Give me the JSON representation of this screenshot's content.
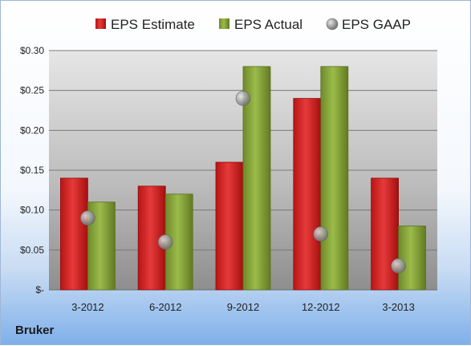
{
  "chart_data": {
    "type": "bar",
    "title": "",
    "xlabel": "",
    "ylabel": "",
    "categories": [
      "3-2012",
      "6-2012",
      "9-2012",
      "12-2012",
      "3-2013"
    ],
    "series": [
      {
        "name": "EPS Estimate",
        "kind": "bar",
        "color": "#cc2222",
        "values": [
          0.14,
          0.13,
          0.16,
          0.24,
          0.14
        ]
      },
      {
        "name": "EPS Actual",
        "kind": "bar",
        "color": "#8aa83a",
        "values": [
          0.11,
          0.12,
          0.28,
          0.28,
          0.08
        ]
      },
      {
        "name": "EPS GAAP",
        "kind": "scatter",
        "color": "#9a9a9a",
        "values": [
          0.09,
          0.06,
          0.24,
          0.07,
          0.03
        ]
      }
    ],
    "ylim": [
      0,
      0.3
    ],
    "yticks": [
      0,
      0.05,
      0.1,
      0.15,
      0.2,
      0.25,
      0.3
    ],
    "ytick_labels": [
      "$-",
      "$0.05",
      "$0.10",
      "$0.15",
      "$0.20",
      "$0.25",
      "$0.30"
    ],
    "grid": true,
    "legend_position": "top"
  },
  "company": "Bruker"
}
